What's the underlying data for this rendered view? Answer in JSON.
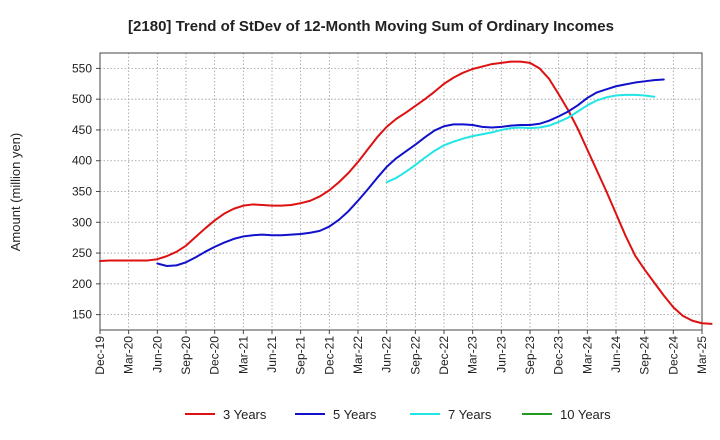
{
  "chart_data": {
    "type": "line",
    "title": "[2180]  Trend of StDev of 12-Month Moving Sum of Ordinary Incomes",
    "xlabel": "",
    "ylabel": "Amount (million yen)",
    "ylim": [
      125,
      575
    ],
    "yticks": [
      150,
      200,
      250,
      300,
      350,
      400,
      450,
      500,
      550
    ],
    "grid": true,
    "legend_position": "bottom",
    "x_start": "Dec-19",
    "x_tick_labels": [
      "Dec-19",
      "Mar-20",
      "Jun-20",
      "Sep-20",
      "Dec-20",
      "Mar-21",
      "Jun-21",
      "Sep-21",
      "Dec-21",
      "Mar-22",
      "Jun-22",
      "Sep-22",
      "Dec-22",
      "Mar-23",
      "Jun-23",
      "Sep-23",
      "Dec-23",
      "Mar-24",
      "Jun-24",
      "Sep-24",
      "Dec-24",
      "Mar-25"
    ],
    "series": [
      {
        "name": "3 Years",
        "color": "#dd1111",
        "start_index": 0,
        "values": [
          237,
          238,
          238,
          238,
          238,
          238,
          240,
          245,
          252,
          262,
          276,
          290,
          303,
          314,
          322,
          327,
          329,
          328,
          327,
          327,
          328,
          331,
          335,
          342,
          352,
          365,
          380,
          398,
          418,
          438,
          455,
          468,
          478,
          489,
          500,
          512,
          525,
          535,
          543,
          549,
          553,
          557,
          559,
          561,
          561,
          559,
          550,
          533,
          508,
          482,
          452,
          418,
          384,
          350,
          314,
          278,
          246,
          223,
          202,
          181,
          162,
          148,
          140,
          136,
          135
        ]
      },
      {
        "name": "5 Years",
        "color": "#1111cc",
        "start_index": 6,
        "values": [
          233,
          229,
          230,
          235,
          243,
          252,
          260,
          267,
          273,
          277,
          279,
          280,
          279,
          279,
          280,
          281,
          283,
          286,
          293,
          304,
          318,
          335,
          353,
          372,
          390,
          404,
          415,
          426,
          438,
          449,
          456,
          459,
          459,
          458,
          455,
          454,
          455,
          457,
          458,
          458,
          460,
          465,
          472,
          480,
          490,
          502,
          511,
          516,
          521,
          524,
          527,
          529,
          531,
          532
        ]
      },
      {
        "name": "7 Years",
        "color": "#22e5e5",
        "start_index": 30,
        "values": [
          365,
          372,
          382,
          393,
          405,
          416,
          425,
          431,
          436,
          440,
          443,
          446,
          450,
          453,
          454,
          453,
          454,
          457,
          463,
          470,
          480,
          490,
          498,
          503,
          506,
          507,
          507,
          506,
          504
        ]
      },
      {
        "name": "10 Years",
        "color": "#229922",
        "start_index": 0,
        "values": []
      }
    ]
  }
}
